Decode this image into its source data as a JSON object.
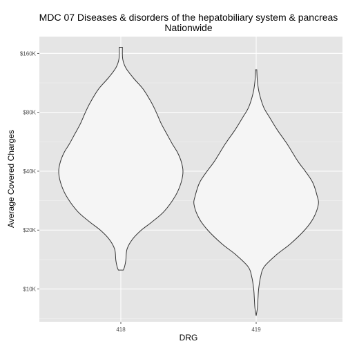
{
  "chart_data": {
    "type": "violin",
    "title": "MDC 07 Diseases & disorders of the hepatobiliary system & pancreas",
    "subtitle": "Nationwide",
    "xlabel": "DRG",
    "ylabel": "Average Covered Charges",
    "y_scale": "log",
    "categories": [
      "418",
      "419"
    ],
    "y_ticks": [
      10000,
      20000,
      40000,
      80000,
      160000
    ],
    "y_tick_labels": [
      "$10K",
      "$20K",
      "$40K",
      "$80K",
      "$160K"
    ],
    "ylim": [
      6800,
      195000
    ],
    "grid": true,
    "legend": "none",
    "colors": {
      "panel": "#e5e5e5",
      "grid_major": "#ffffff",
      "grid_minor": "#f2f2f2",
      "violin_fill": "#f5f5f5",
      "violin_stroke": "#333333"
    },
    "series": [
      {
        "category": "418",
        "profile": [
          [
            12500,
            0.04
          ],
          [
            13000,
            0.06
          ],
          [
            14000,
            0.08
          ],
          [
            16000,
            0.1
          ],
          [
            18000,
            0.19
          ],
          [
            20000,
            0.33
          ],
          [
            22000,
            0.5
          ],
          [
            25000,
            0.7
          ],
          [
            30000,
            0.88
          ],
          [
            35000,
            0.97
          ],
          [
            40000,
            1.0
          ],
          [
            45000,
            0.97
          ],
          [
            50000,
            0.91
          ],
          [
            55000,
            0.83
          ],
          [
            62000,
            0.74
          ],
          [
            70000,
            0.65
          ],
          [
            80000,
            0.57
          ],
          [
            90000,
            0.49
          ],
          [
            105000,
            0.36
          ],
          [
            120000,
            0.2
          ],
          [
            135000,
            0.08
          ],
          [
            150000,
            0.03
          ],
          [
            172000,
            0.025
          ]
        ]
      },
      {
        "category": "419",
        "profile": [
          [
            7300,
            0.0
          ],
          [
            8000,
            0.02
          ],
          [
            9000,
            0.03
          ],
          [
            10000,
            0.04
          ],
          [
            11500,
            0.07
          ],
          [
            13000,
            0.13
          ],
          [
            15000,
            0.33
          ],
          [
            17000,
            0.55
          ],
          [
            20000,
            0.78
          ],
          [
            23000,
            0.92
          ],
          [
            27000,
            1.0
          ],
          [
            30000,
            0.98
          ],
          [
            35000,
            0.91
          ],
          [
            40000,
            0.79
          ],
          [
            45000,
            0.67
          ],
          [
            55000,
            0.5
          ],
          [
            65000,
            0.34
          ],
          [
            75000,
            0.22
          ],
          [
            85000,
            0.12
          ],
          [
            100000,
            0.05
          ],
          [
            115000,
            0.02
          ],
          [
            132000,
            0.01
          ]
        ]
      }
    ]
  }
}
